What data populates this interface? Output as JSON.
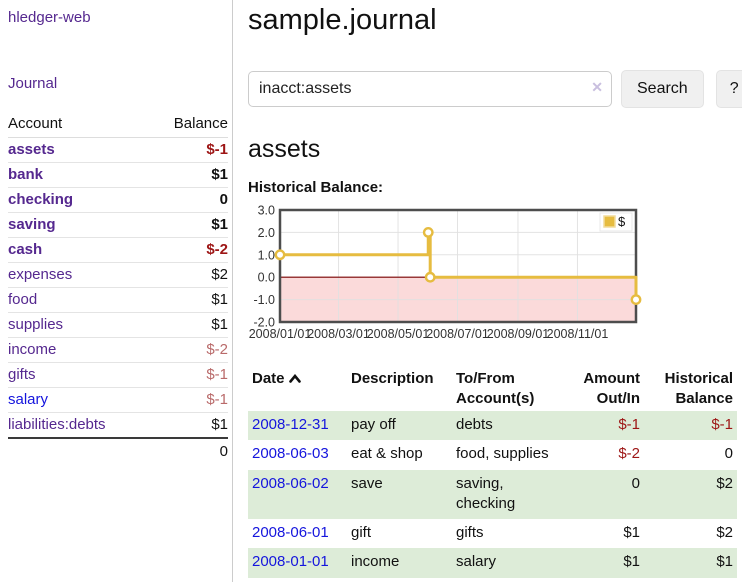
{
  "sidebar": {
    "brand": "hledger-web",
    "nav": {
      "journal": "Journal"
    },
    "table": {
      "account_header": "Account",
      "balance_header": "Balance"
    },
    "accounts": [
      {
        "name": "assets",
        "depth": 1,
        "balance": "$-1",
        "bold": true,
        "neg": "strong",
        "blue": false
      },
      {
        "name": "bank",
        "depth": 2,
        "balance": "$1",
        "bold": true,
        "neg": "none",
        "blue": false
      },
      {
        "name": "checking",
        "depth": 3,
        "balance": "0",
        "bold": true,
        "neg": "none",
        "blue": false
      },
      {
        "name": "saving",
        "depth": 3,
        "balance": "$1",
        "bold": true,
        "neg": "none",
        "blue": false
      },
      {
        "name": "cash",
        "depth": 2,
        "balance": "$-2",
        "bold": true,
        "neg": "strong",
        "blue": false
      },
      {
        "name": "expenses",
        "depth": 1,
        "balance": "$2",
        "bold": false,
        "neg": "none",
        "blue": false
      },
      {
        "name": "food",
        "depth": 2,
        "balance": "$1",
        "bold": false,
        "neg": "none",
        "blue": false
      },
      {
        "name": "supplies",
        "depth": 2,
        "balance": "$1",
        "bold": false,
        "neg": "none",
        "blue": false
      },
      {
        "name": "income",
        "depth": 1,
        "balance": "$-2",
        "bold": false,
        "neg": "faded",
        "blue": false
      },
      {
        "name": "gifts",
        "depth": 2,
        "balance": "$-1",
        "bold": false,
        "neg": "faded",
        "blue": false
      },
      {
        "name": "salary",
        "depth": 2,
        "balance": "$-1",
        "bold": false,
        "neg": "faded",
        "blue": true
      },
      {
        "name": "liabilities:debts",
        "depth": 1,
        "balance": "$1",
        "bold": false,
        "neg": "none",
        "blue": false
      }
    ],
    "total": "0"
  },
  "main": {
    "title": "sample.journal",
    "search": {
      "value": "inacct:assets",
      "clear_icon": "✕",
      "button_label": "Search",
      "help_label": "?"
    },
    "account_heading": "assets",
    "chart_heading": "Historical Balance:"
  },
  "chart_data": {
    "type": "line",
    "title": "Historical Balance",
    "step": true,
    "series": [
      {
        "name": "$",
        "points": [
          [
            "2008-01-01",
            1
          ],
          [
            "2008-06-01",
            2
          ],
          [
            "2008-06-03",
            0
          ],
          [
            "2008-12-31",
            -1
          ]
        ]
      }
    ],
    "ylim": [
      -2,
      3
    ],
    "yticks": [
      "3.0",
      "2.0",
      "1.0",
      "0.0",
      "-1.0",
      "-2.0"
    ],
    "xticks": [
      "2008/01/01",
      "2008/03/01",
      "2008/05/01",
      "2008/07/01",
      "2008/09/01",
      "2008/11/01"
    ],
    "x_range": [
      "2008-01-01",
      "2008-12-31"
    ],
    "legend": {
      "label": "$",
      "position": "top-right"
    },
    "grid": true,
    "colors": {
      "line": "#e6bc40",
      "marker_fill": "#ffffff",
      "negative_region": "#fbdada",
      "zero_line": "#7d0101",
      "border": "#4d4d4d",
      "gridline": "#e0e0e0"
    }
  },
  "register": {
    "headers": {
      "date": "Date",
      "description": "Description",
      "tofrom_line1": "To/From",
      "tofrom_line2": "Account(s)",
      "amount_line1": "Amount",
      "amount_line2": "Out/In",
      "hist_line1": "Historical",
      "hist_line2": "Balance"
    },
    "rows": [
      {
        "date": "2008-12-31",
        "description": "pay off",
        "accounts": "debts",
        "amount": "$-1",
        "amount_neg": true,
        "balance": "$-1",
        "balance_neg": true
      },
      {
        "date": "2008-06-03",
        "description": "eat & shop",
        "accounts": "food, supplies",
        "amount": "$-2",
        "amount_neg": true,
        "balance": "0",
        "balance_neg": false
      },
      {
        "date": "2008-06-02",
        "description": "save",
        "accounts": "saving, checking",
        "amount": "0",
        "amount_neg": false,
        "balance": "$2",
        "balance_neg": false
      },
      {
        "date": "2008-06-01",
        "description": "gift",
        "accounts": "gifts",
        "amount": "$1",
        "amount_neg": false,
        "balance": "$2",
        "balance_neg": false
      },
      {
        "date": "2008-01-01",
        "description": "income",
        "accounts": "salary",
        "amount": "$1",
        "amount_neg": false,
        "balance": "$1",
        "balance_neg": false
      }
    ]
  },
  "colors": {
    "link_purple": "#55288f",
    "link_blue": "#1515dd",
    "negative_strong": "#9d1515",
    "negative_faded": "#b96a6a",
    "row_stripe_green": "#ddecd8"
  }
}
